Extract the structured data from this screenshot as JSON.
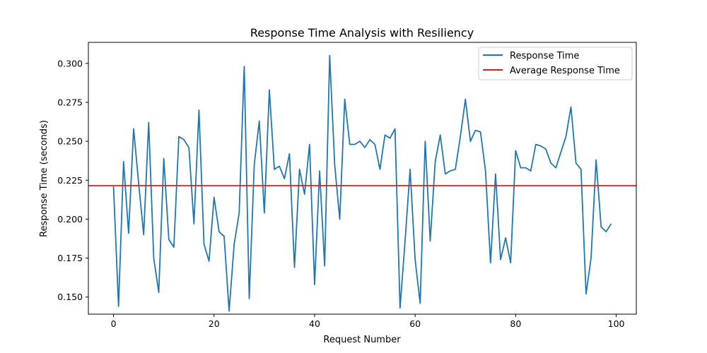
{
  "chart_data": {
    "type": "line",
    "title": "Response Time Analysis with Resiliency",
    "xlabel": "Request Number",
    "ylabel": "Response Time (seconds)",
    "xlim": [
      -5,
      104
    ],
    "ylim": [
      0.139,
      0.3135
    ],
    "xticks": [
      0,
      20,
      40,
      60,
      80,
      100
    ],
    "xtick_labels": [
      "0",
      "20",
      "40",
      "60",
      "80",
      "100"
    ],
    "yticks": [
      0.15,
      0.175,
      0.2,
      0.225,
      0.25,
      0.275,
      0.3
    ],
    "ytick_labels": [
      "0.150",
      "0.175",
      "0.200",
      "0.225",
      "0.250",
      "0.275",
      "0.300"
    ],
    "grid": false,
    "legend_position": "top-right",
    "series": [
      {
        "name": "Response Time",
        "color": "#1f77b4",
        "values": [
          0.221,
          0.144,
          0.237,
          0.191,
          0.258,
          0.223,
          0.19,
          0.262,
          0.175,
          0.153,
          0.239,
          0.187,
          0.182,
          0.253,
          0.251,
          0.246,
          0.197,
          0.27,
          0.184,
          0.173,
          0.214,
          0.192,
          0.189,
          0.141,
          0.184,
          0.204,
          0.298,
          0.149,
          0.235,
          0.263,
          0.204,
          0.283,
          0.232,
          0.234,
          0.226,
          0.242,
          0.169,
          0.232,
          0.216,
          0.248,
          0.158,
          0.231,
          0.17,
          0.305,
          0.235,
          0.2,
          0.277,
          0.248,
          0.248,
          0.25,
          0.246,
          0.251,
          0.248,
          0.232,
          0.254,
          0.252,
          0.258,
          0.143,
          0.186,
          0.232,
          0.174,
          0.146,
          0.25,
          0.186,
          0.237,
          0.254,
          0.229,
          0.231,
          0.232,
          0.253,
          0.277,
          0.25,
          0.257,
          0.256,
          0.231,
          0.172,
          0.229,
          0.174,
          0.188,
          0.172,
          0.244,
          0.233,
          0.233,
          0.231,
          0.248,
          0.247,
          0.245,
          0.236,
          0.233,
          0.243,
          0.253,
          0.272,
          0.236,
          0.232,
          0.152,
          0.175,
          0.238,
          0.195,
          0.192,
          0.197
        ]
      },
      {
        "name": "Average Response Time",
        "color": "#e31a1c",
        "type": "hline",
        "y": 0.2215
      }
    ]
  }
}
